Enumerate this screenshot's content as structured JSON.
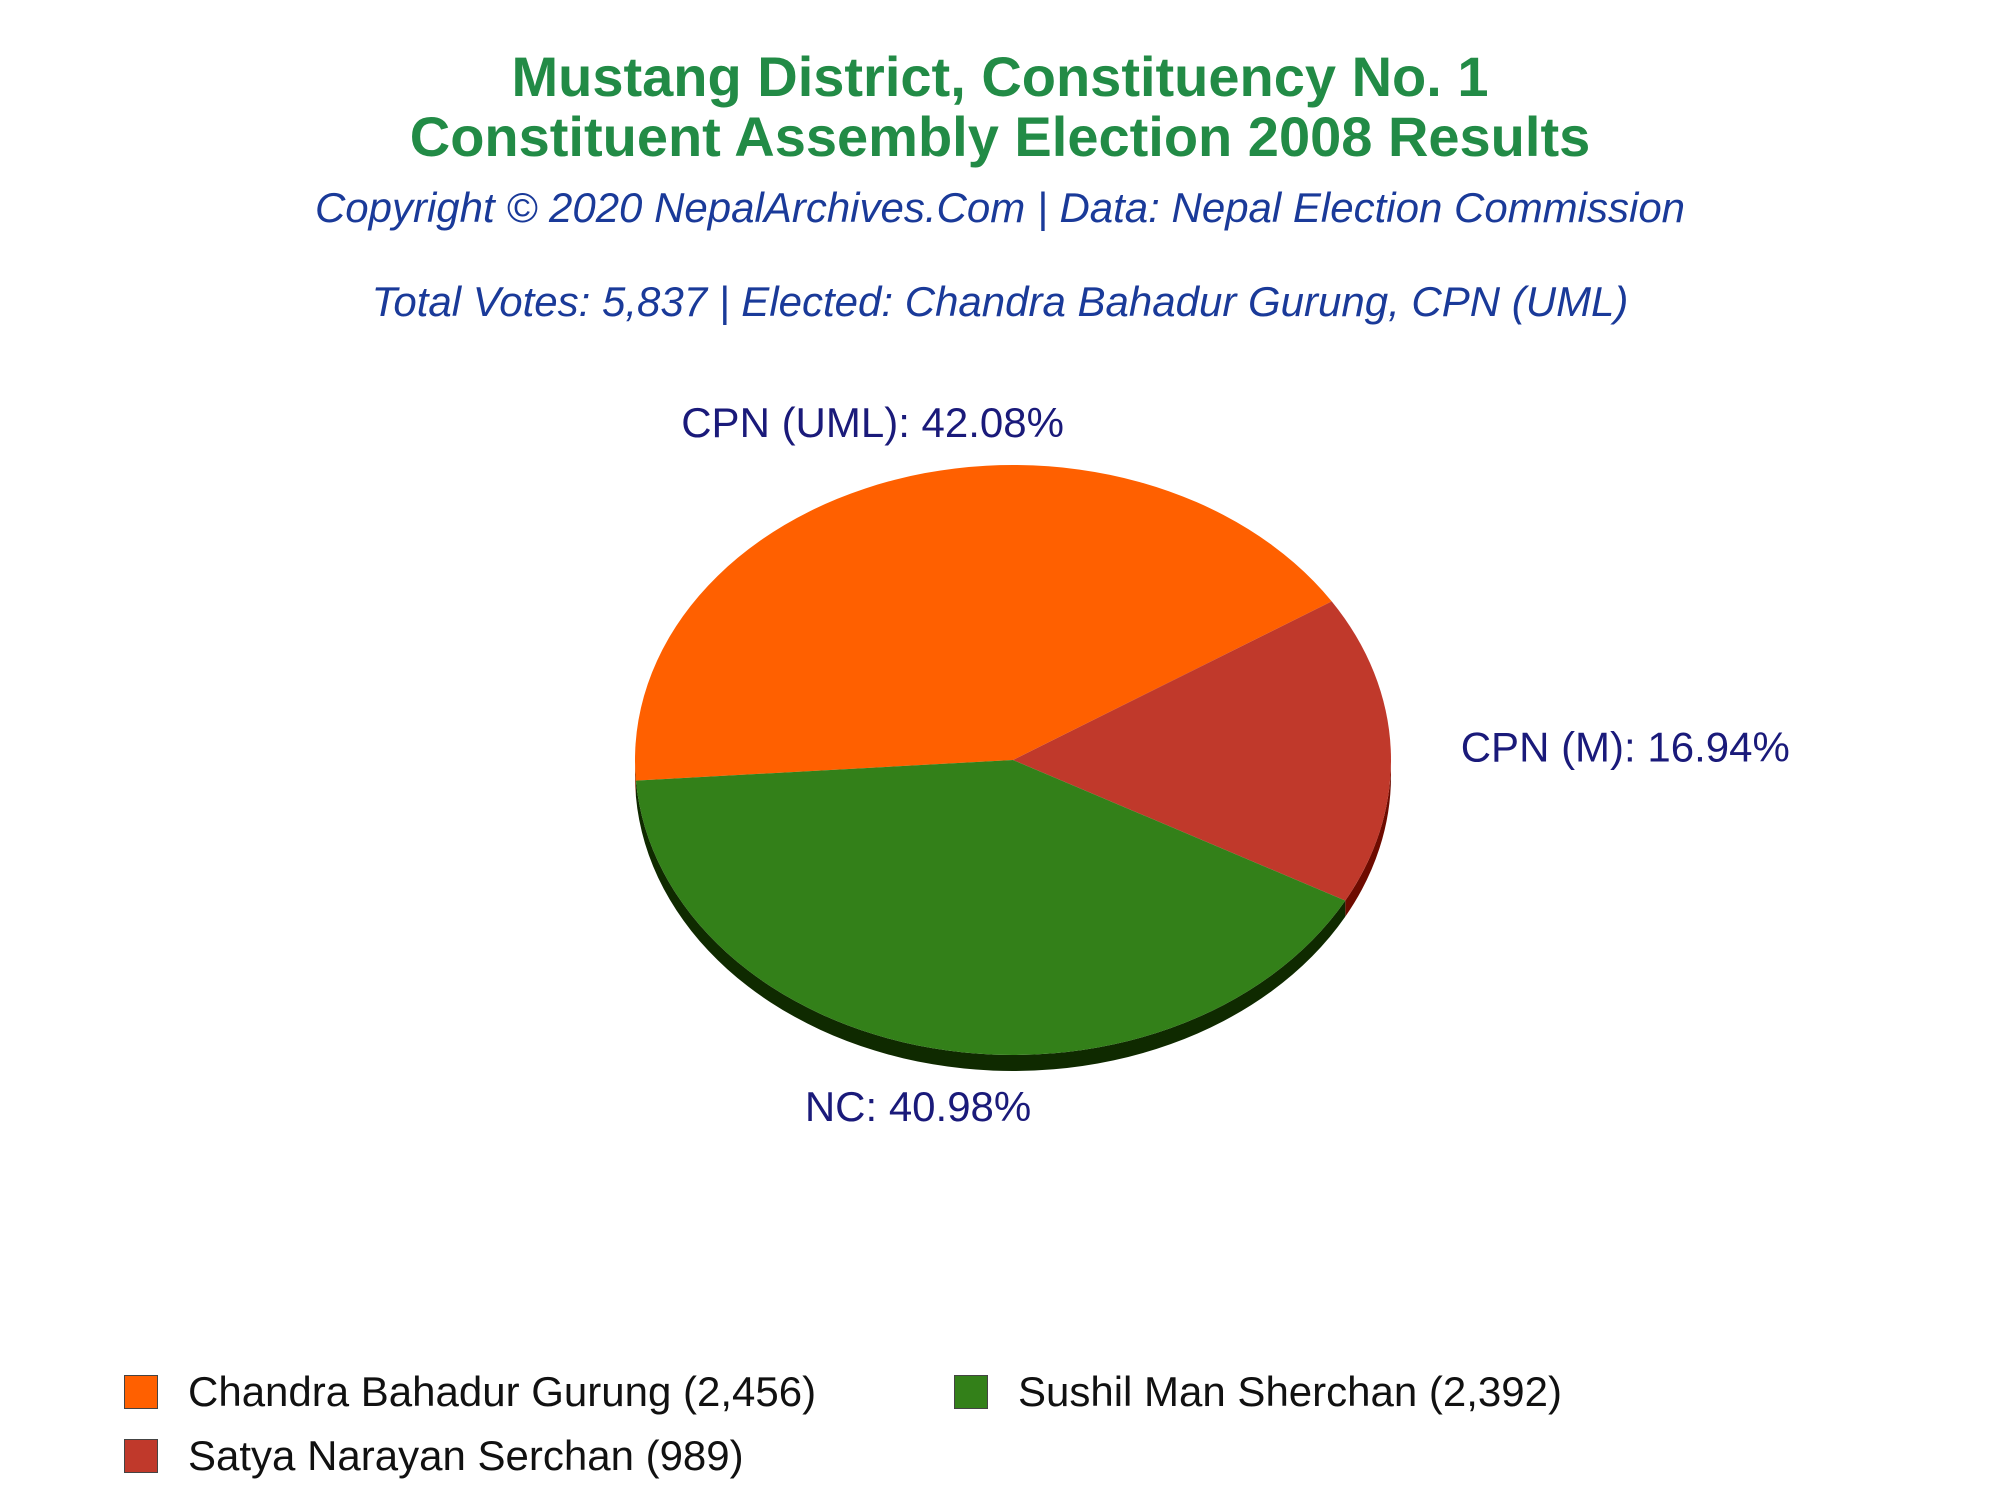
{
  "header": {
    "title_line1": "Mustang District, Constituency No. 1",
    "title_line2": "Constituent Assembly Election 2008 Results",
    "copyright": "Copyright © 2020 NepalArchives.Com | Data: Nepal Election Commission",
    "summary": "Total Votes: 5,837 | Elected: Chandra Bahadur Gurung, CPN (UML)"
  },
  "colors": {
    "title": "#228b46",
    "subtitle": "#1a3a99",
    "label": "#1a1a7a"
  },
  "chart_data": {
    "type": "pie",
    "style": "3d",
    "total": 5837,
    "slices": [
      {
        "party": "CPN (UML)",
        "candidate": "Chandra Bahadur Gurung",
        "votes": 2456,
        "votes_label": "2,456",
        "percent": 42.08,
        "label": "CPN (UML): 42.08%",
        "legend": "Chandra Bahadur Gurung (2,456)",
        "color": "#ff6000",
        "side_color": "#8a3000"
      },
      {
        "party": "CPN (M)",
        "candidate": "Satya Narayan Serchan",
        "votes": 989,
        "votes_label": "989",
        "percent": 16.94,
        "label": "CPN (M): 16.94%",
        "legend": "Satya Narayan Serchan (989)",
        "color": "#c0392b",
        "side_color": "#6e0b00"
      },
      {
        "party": "NC",
        "candidate": "Sushil Man Sherchan",
        "votes": 2392,
        "votes_label": "2,392",
        "percent": 40.98,
        "label": "NC: 40.98%",
        "legend": "Sushil Man Sherchan (2,392)",
        "color": "#338019",
        "side_color": "#0f2a00"
      }
    ]
  }
}
